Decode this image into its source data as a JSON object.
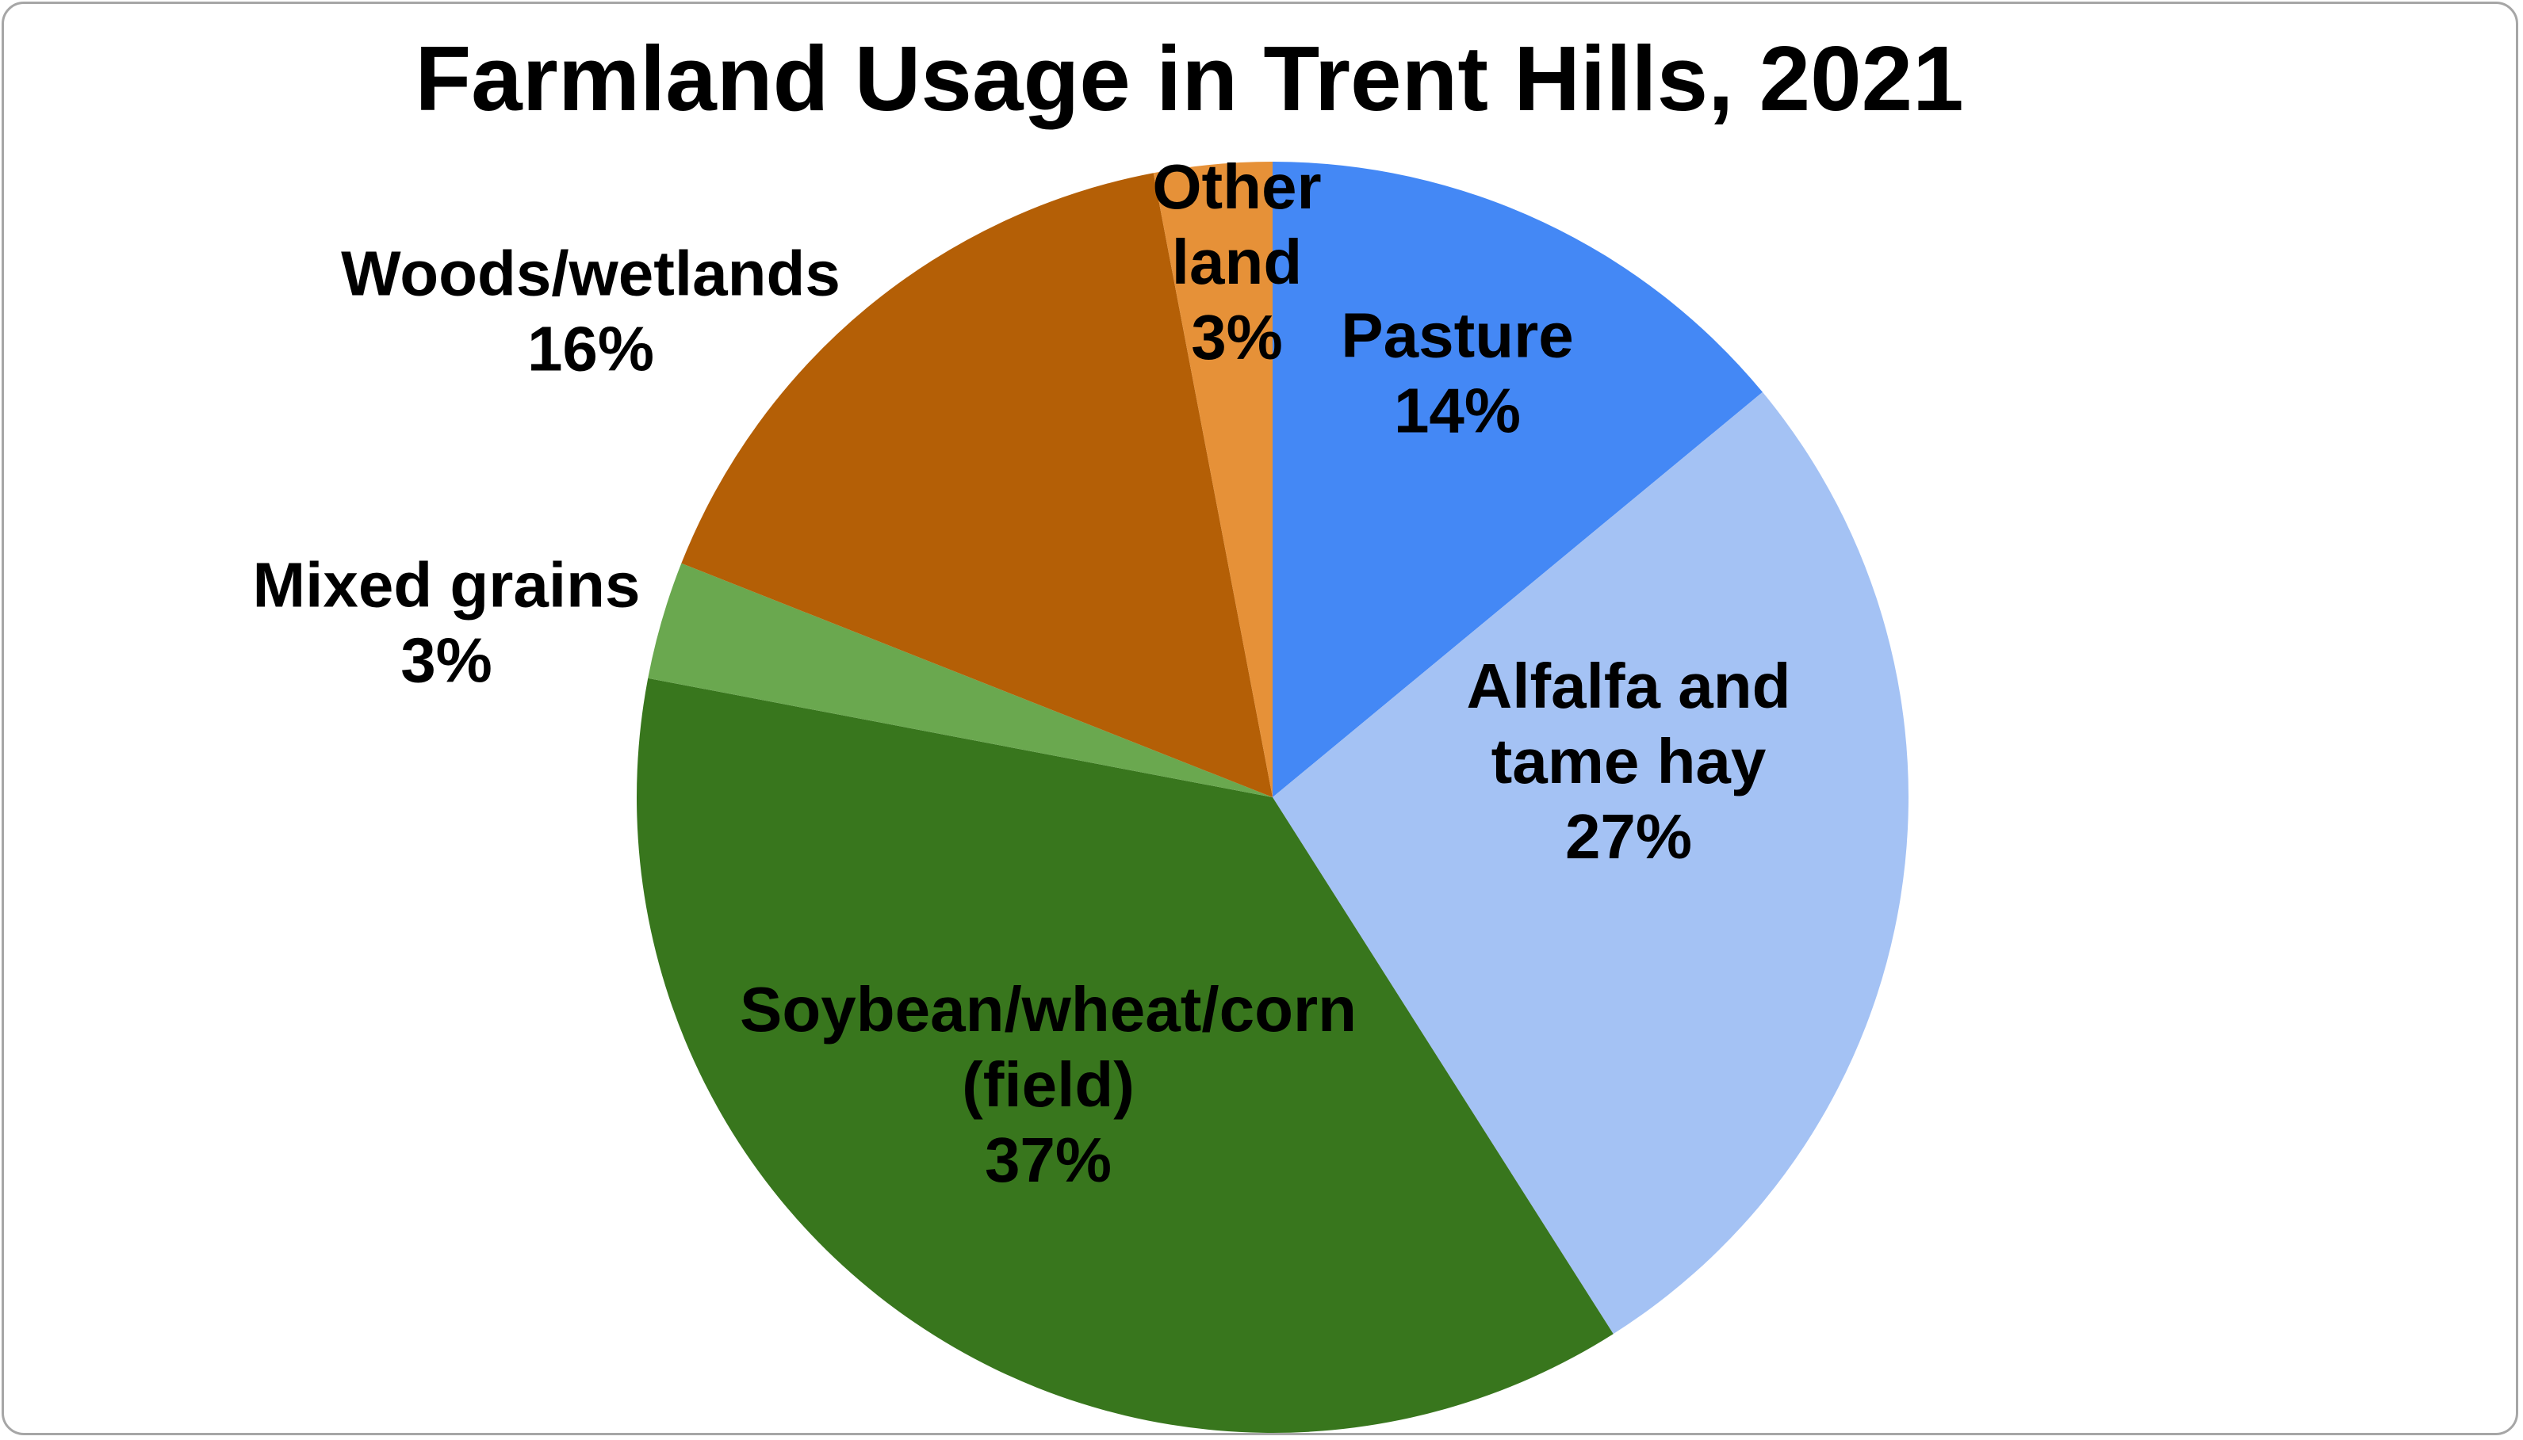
{
  "chart_data": {
    "type": "pie",
    "title": "Farmland Usage in Trent Hills, 2021",
    "slices": [
      {
        "label": "Pasture",
        "label_lines": [
          "Pasture"
        ],
        "value_label": "14%",
        "value": 14,
        "color": "#4488f5"
      },
      {
        "label": "Alfalfa and tame hay",
        "label_lines": [
          "Alfalfa and",
          "tame hay"
        ],
        "value_label": "27%",
        "value": 27,
        "color": "#a4c2f4"
      },
      {
        "label": "Soybean/wheat/corn (field)",
        "label_lines": [
          "Soybean/wheat/corn",
          "(field)"
        ],
        "value_label": "37%",
        "value": 37,
        "color": "#38761d"
      },
      {
        "label": "Mixed grains",
        "label_lines": [
          "Mixed grains"
        ],
        "value_label": "3%",
        "value": 3,
        "color": "#6aa84f"
      },
      {
        "label": "Woods/wetlands",
        "label_lines": [
          "Woods/wetlands"
        ],
        "value_label": "16%",
        "value": 16,
        "color": "#b45f06"
      },
      {
        "label": "Other land",
        "label_lines": [
          "Other",
          "land"
        ],
        "value_label": "3%",
        "value": 3,
        "color": "#e69138"
      }
    ],
    "start_angle": "12 o'clock",
    "direction": "clockwise",
    "legend": "none"
  }
}
